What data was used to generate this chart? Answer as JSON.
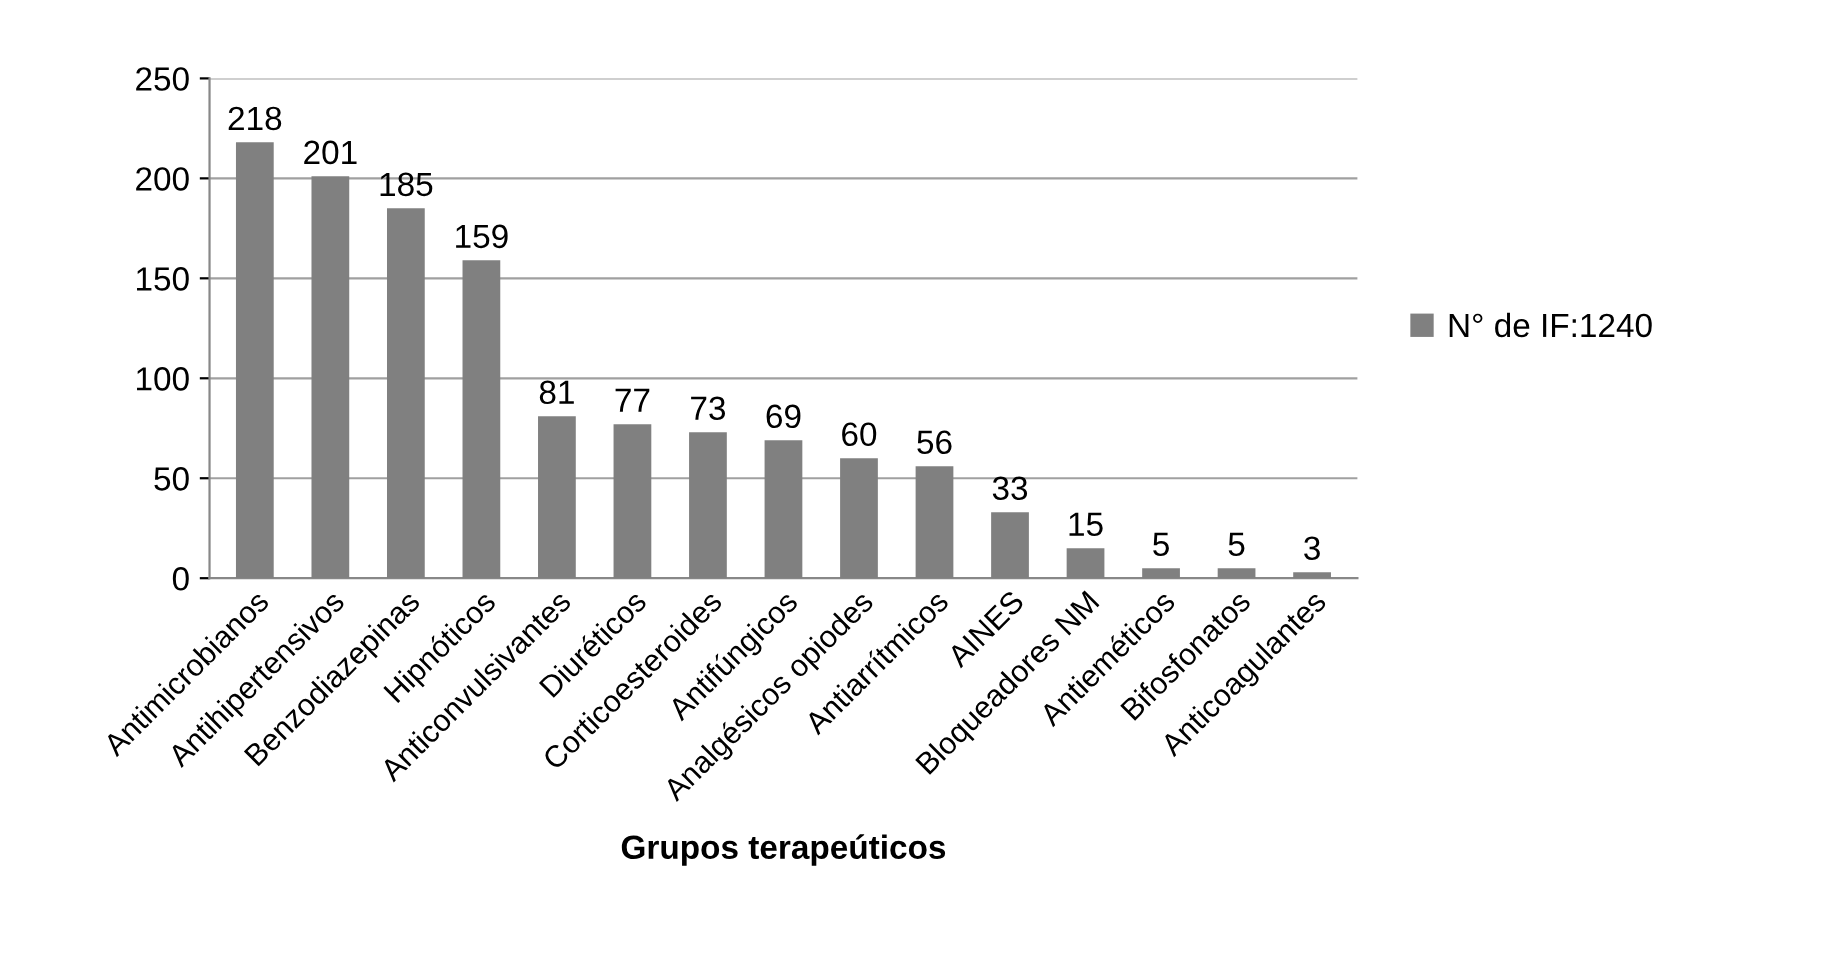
{
  "chart_data": {
    "type": "bar",
    "xlabel": "Grupos terapeúticos",
    "categories": [
      "Antimicrobianos",
      "Antihipertensivos",
      "Benzodiazepinas",
      "Hipnóticos",
      "Anticonvulsivantes",
      "Diuréticos",
      "Corticoesteroides",
      "Antifúngicos",
      "Analgésicos opiodes",
      "Antiarrítmicos",
      "AINES",
      "Bloqueadores NM",
      "Antieméticos",
      "Bifosfonatos",
      "Anticoagulantes"
    ],
    "series": [
      {
        "name": "N° de IF:1240",
        "color": "#808080",
        "values": [
          218,
          201,
          185,
          159,
          81,
          77,
          73,
          69,
          60,
          56,
          33,
          15,
          5,
          5,
          3
        ]
      }
    ],
    "ylim": [
      0,
      250
    ],
    "yticks": [
      0,
      50,
      100,
      150,
      200,
      250
    ],
    "grid": "y",
    "legend": "right",
    "data_labels": true
  }
}
